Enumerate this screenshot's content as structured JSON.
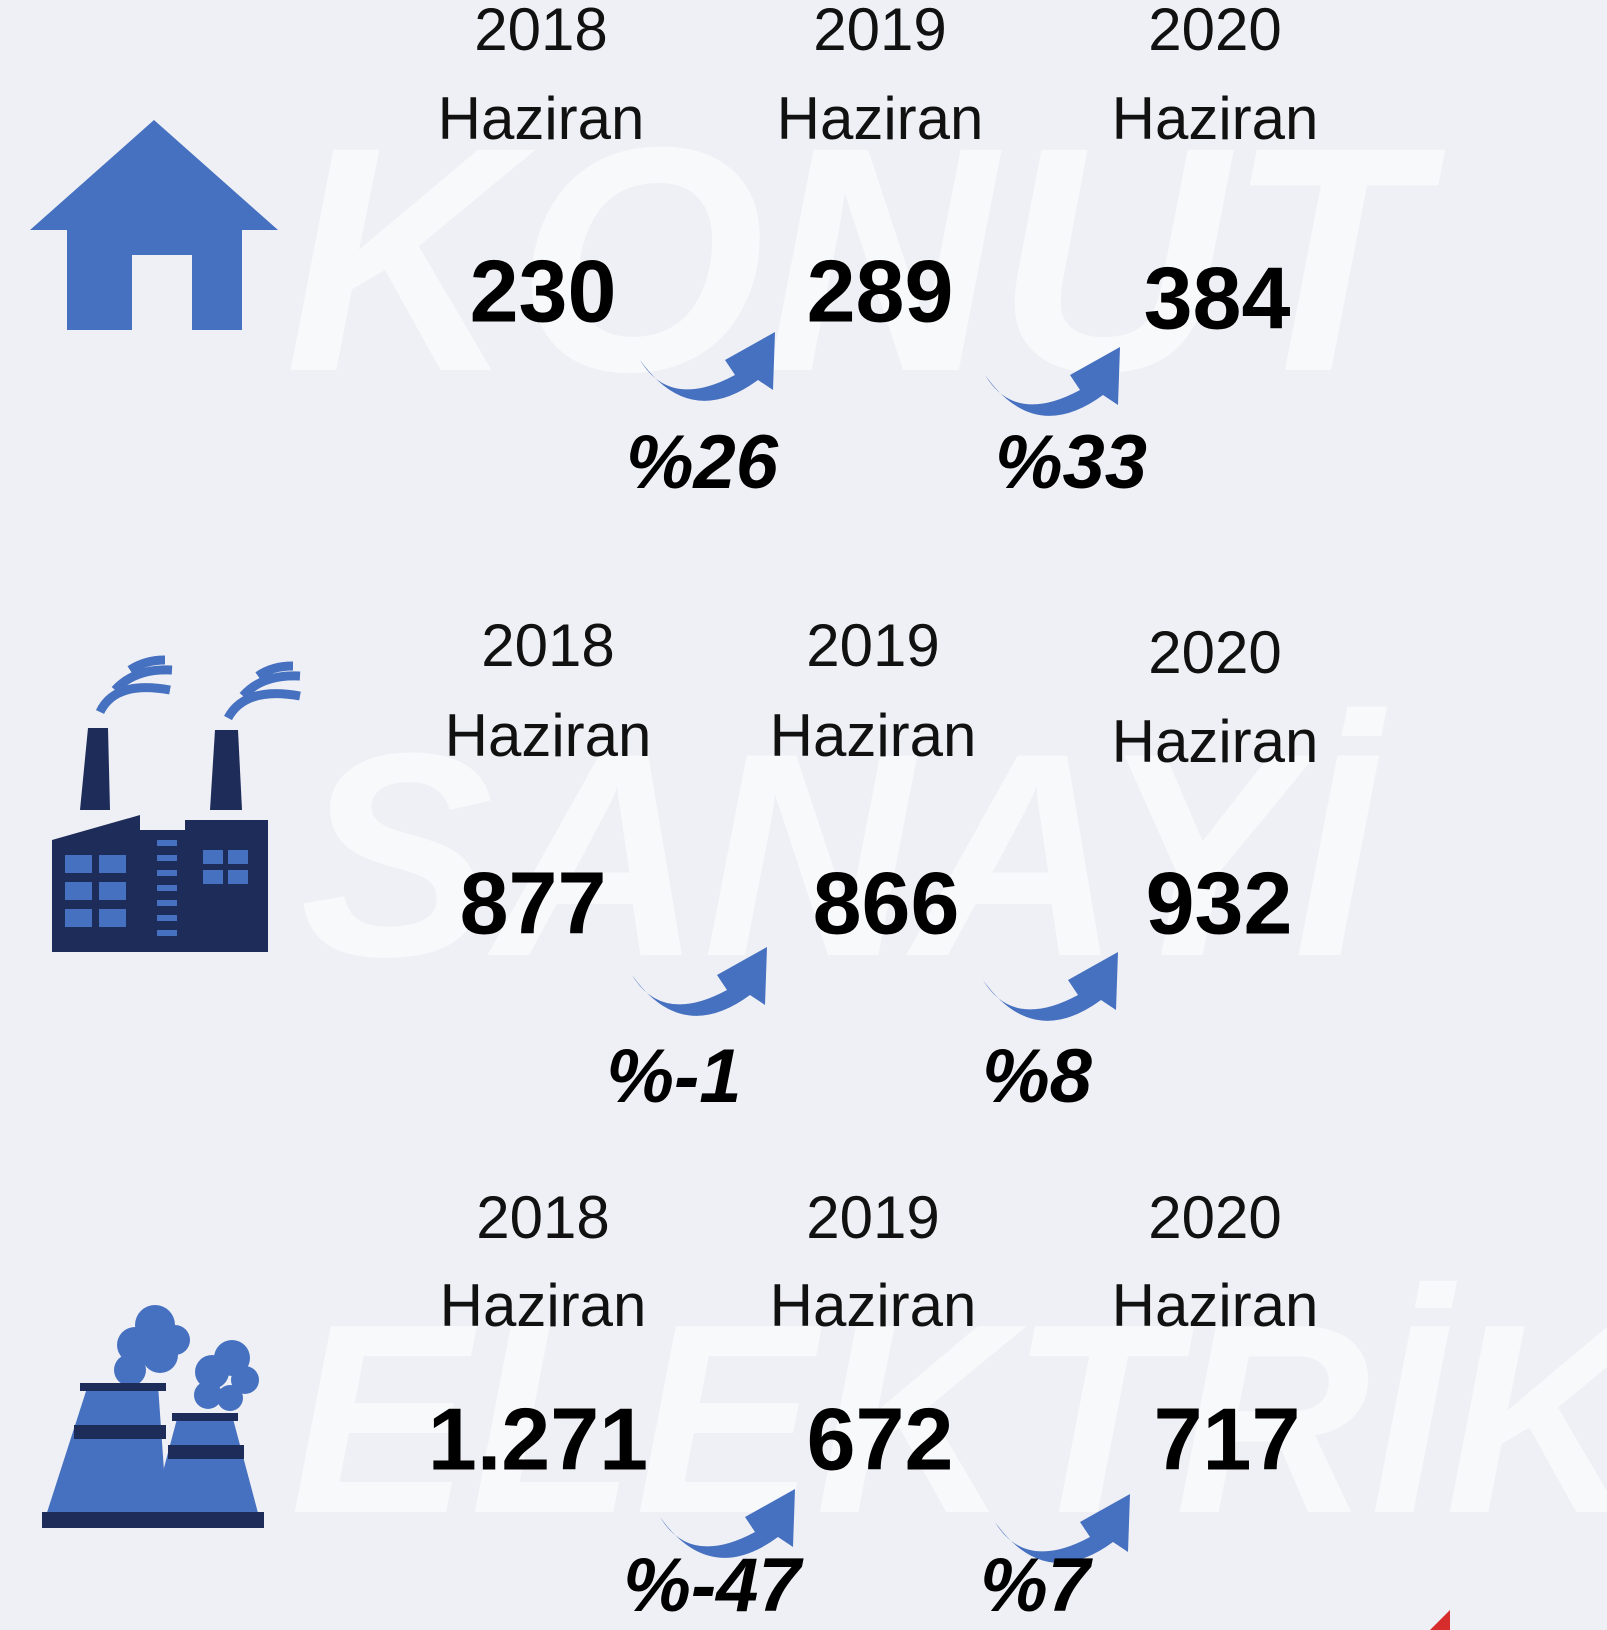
{
  "sections": [
    {
      "title": "KONUT",
      "periods": [
        {
          "year": "2018",
          "month": "Haziran",
          "value": "230"
        },
        {
          "year": "2019",
          "month": "Haziran",
          "value": "289"
        },
        {
          "year": "2020",
          "month": "Haziran",
          "value": "384"
        }
      ],
      "changes": [
        "%26",
        "%33"
      ]
    },
    {
      "title": "SANAYİ",
      "periods": [
        {
          "year": "2018",
          "month": "Haziran",
          "value": "877"
        },
        {
          "year": "2019",
          "month": "Haziran",
          "value": "866"
        },
        {
          "year": "2020",
          "month": "Haziran",
          "value": "932"
        }
      ],
      "changes": [
        "%-1",
        "%8"
      ]
    },
    {
      "title": "ELEKTRİK",
      "periods": [
        {
          "year": "2018",
          "month": "Haziran",
          "value": "1.271"
        },
        {
          "year": "2019",
          "month": "Haziran",
          "value": "672"
        },
        {
          "year": "2020",
          "month": "Haziran",
          "value": "717"
        }
      ],
      "changes": [
        "%-47",
        "%7"
      ]
    }
  ]
}
